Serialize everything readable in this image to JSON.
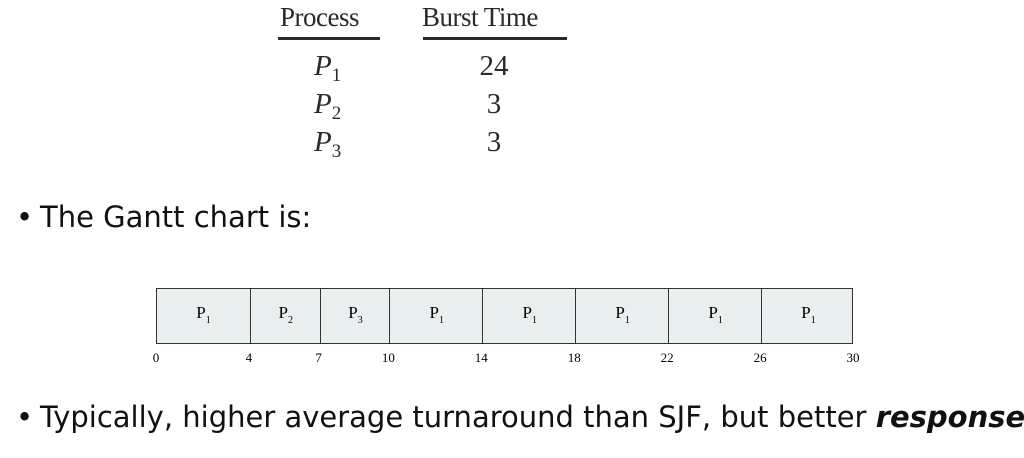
{
  "process_table": {
    "headers": [
      "Process",
      "Burst Time"
    ],
    "rows": [
      {
        "name": "P",
        "sub": "1",
        "burst": "24"
      },
      {
        "name": "P",
        "sub": "2",
        "burst": "3"
      },
      {
        "name": "P",
        "sub": "3",
        "burst": "3"
      }
    ]
  },
  "bullets": {
    "gantt_intro": "The Gantt chart is:",
    "note_plain": "Typically, higher average turnaround than SJF, but better ",
    "note_emphasis": "response"
  },
  "bullet_glyph": "•",
  "gantt": {
    "segments": [
      {
        "name": "P",
        "sub": "1",
        "start": 0,
        "end": 4
      },
      {
        "name": "P",
        "sub": "2",
        "start": 4,
        "end": 7
      },
      {
        "name": "P",
        "sub": "3",
        "start": 7,
        "end": 10
      },
      {
        "name": "P",
        "sub": "1",
        "start": 10,
        "end": 14
      },
      {
        "name": "P",
        "sub": "1",
        "start": 14,
        "end": 18
      },
      {
        "name": "P",
        "sub": "1",
        "start": 18,
        "end": 22
      },
      {
        "name": "P",
        "sub": "1",
        "start": 22,
        "end": 26
      },
      {
        "name": "P",
        "sub": "1",
        "start": 26,
        "end": 30
      }
    ],
    "ticks": [
      "0",
      "4",
      "7",
      "10",
      "14",
      "18",
      "22",
      "26",
      "30"
    ],
    "bar_color": "#e9eeef"
  }
}
